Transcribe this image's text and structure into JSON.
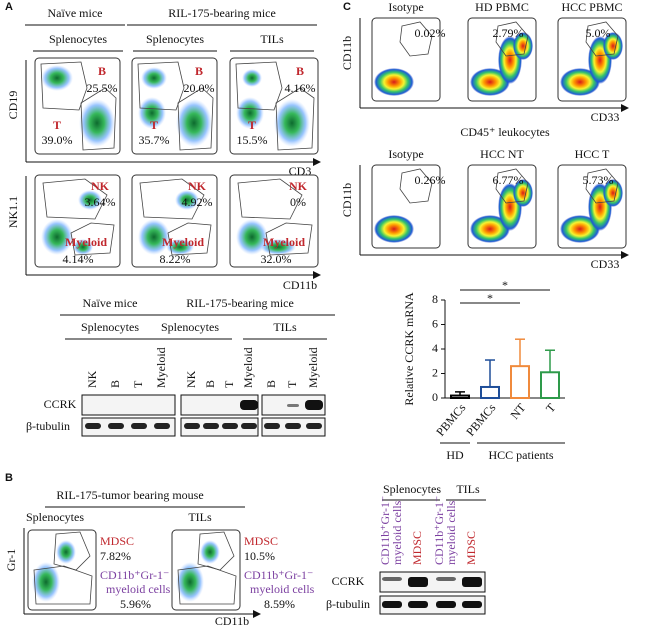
{
  "panel_a": {
    "letter": "A",
    "header": {
      "naive": "Naïve mice",
      "bearing": "RIL-175-bearing mice",
      "splenocytes_1": "Splenocytes",
      "splenocytes_2": "Splenocytes",
      "tils": "TILs"
    },
    "flow_row1": {
      "y_axis": "CD19",
      "x_axis": "CD3",
      "plots": [
        {
          "b": "B",
          "b_pct": "25.5%",
          "t": "T",
          "t_pct": "39.0%"
        },
        {
          "b": "B",
          "b_pct": "20.0%",
          "t": "T",
          "t_pct": "35.7%"
        },
        {
          "b": "B",
          "b_pct": "4.16%",
          "t": "T",
          "t_pct": "15.5%"
        }
      ]
    },
    "flow_row2": {
      "y_axis": "NK1.1",
      "x_axis": "CD11b",
      "plots": [
        {
          "nk": "NK",
          "nk_pct": "3.64%",
          "myeloid": "Myeloid",
          "myeloid_pct": "4.14%"
        },
        {
          "nk": "NK",
          "nk_pct": "4.92%",
          "myeloid": "Myeloid",
          "myeloid_pct": "8.22%"
        },
        {
          "nk": "NK",
          "nk_pct": "0%",
          "myeloid": "Myeloid",
          "myeloid_pct": "32.0%"
        }
      ]
    },
    "western": {
      "header": {
        "naive": "Naïve mice",
        "bearing": "RIL-175-bearing mice",
        "splenocytes_1": "Splenocytes",
        "splenocytes_2": "Splenocytes",
        "tils": "TILs"
      },
      "lanes": [
        "NK",
        "B",
        "T",
        "Myeloid",
        "NK",
        "B",
        "T",
        "Myeloid",
        "B",
        "T",
        "Myeloid"
      ],
      "rows": [
        "CCRK",
        "β-tubulin"
      ]
    }
  },
  "panel_b": {
    "letter": "B",
    "title": "RIL-175-tumor bearing mouse",
    "y_axis": "Gr-1",
    "x_axis": "CD11b",
    "plots": [
      {
        "label": "Splenocytes",
        "mdsc": "MDSC",
        "mdsc_pct": "7.82%",
        "myeloid_1": "CD11b⁺Gr-1⁻",
        "myeloid_2": "myeloid cells",
        "myeloid_pct": "5.96%"
      },
      {
        "label": "TILs",
        "mdsc": "MDSC",
        "mdsc_pct": "10.5%",
        "myeloid_1": "CD11b⁺Gr-1⁻",
        "myeloid_2": "myeloid cells",
        "myeloid_pct": "8.59%"
      }
    ],
    "western": {
      "groups": [
        "Splenocytes",
        "TILs"
      ],
      "lanes": [
        [
          "CD11b⁺Gr-1⁻",
          "myeloid cells"
        ],
        [
          "MDSC"
        ],
        [
          "CD11b⁺Gr-1⁻",
          "myeloid cells"
        ],
        [
          "MDSC"
        ]
      ],
      "rows": [
        "CCRK",
        "β-tubulin"
      ]
    }
  },
  "panel_c": {
    "letter": "C",
    "row1": {
      "titles": [
        "Isotype",
        "HD PBMC",
        "HCC PBMC"
      ],
      "pcts": [
        "0.02%",
        "2.79%",
        "5.0%"
      ],
      "y_axis": "CD11b",
      "x_axis": "CD33"
    },
    "row2_title": "CD45⁺ leukocytes",
    "row2": {
      "titles": [
        "Isotype",
        "HCC NT",
        "HCC T"
      ],
      "pcts": [
        "0.26%",
        "6.77%",
        "5.73%"
      ],
      "y_axis": "CD11b",
      "x_axis": "CD33"
    },
    "chart": {
      "type": "bar",
      "y_label": "Relative CCRK mRNA",
      "categories": [
        "PBMCs",
        "PBMCs",
        "NT",
        "T"
      ],
      "values": [
        0.2,
        0.9,
        2.6,
        2.1
      ],
      "errors": [
        0.3,
        2.2,
        2.2,
        1.8
      ],
      "colors": [
        "#000000",
        "#1f4e99",
        "#f08a3c",
        "#2e9a4a"
      ],
      "ylim": [
        0,
        8
      ],
      "yticks": [
        0,
        2,
        4,
        6,
        8
      ],
      "significance": [
        "*",
        "*"
      ],
      "groups": [
        "HD",
        "HCC patients"
      ]
    }
  }
}
